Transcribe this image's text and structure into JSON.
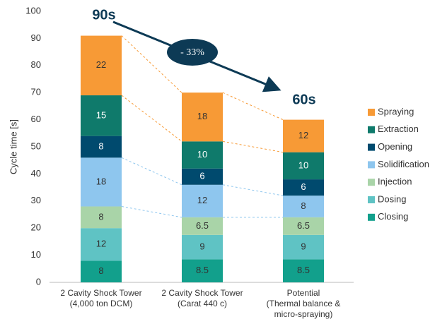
{
  "chart_data": {
    "type": "stacked-bar",
    "y_label": "Cycle time [s]",
    "categories": [
      [
        "2 Cavity Shock Tower",
        "(4,000 ton DCM)"
      ],
      [
        "2 Cavity Shock Tower",
        "(Carat 440 c)"
      ],
      [
        "Potential",
        "(Thermal balance &",
        "micro-spraying)"
      ]
    ],
    "series": [
      {
        "name": "Closing",
        "color": "#12a08c",
        "values": [
          8,
          8.5,
          8.5
        ]
      },
      {
        "name": "Dosing",
        "color": "#5fc3c4",
        "values": [
          12,
          9,
          9
        ]
      },
      {
        "name": "Injection",
        "color": "#a9d4a8",
        "values": [
          8,
          6.5,
          6.5
        ]
      },
      {
        "name": "Solidification",
        "color": "#8ec6ee",
        "values": [
          18,
          12,
          8
        ]
      },
      {
        "name": "Opening",
        "color": "#004a6e",
        "values": [
          8,
          6,
          6
        ]
      },
      {
        "name": "Extraction",
        "color": "#0f7a6b",
        "values": [
          15,
          10,
          10
        ]
      },
      {
        "name": "Spraying",
        "color": "#f79a36",
        "values": [
          22,
          18,
          12
        ]
      }
    ],
    "ylim": [
      0,
      100
    ],
    "yticks": [
      0,
      10,
      20,
      30,
      40,
      50,
      60,
      70,
      80,
      90,
      100
    ],
    "legend": "right",
    "annotations": [
      "90s",
      "60s",
      "- 33%"
    ]
  }
}
